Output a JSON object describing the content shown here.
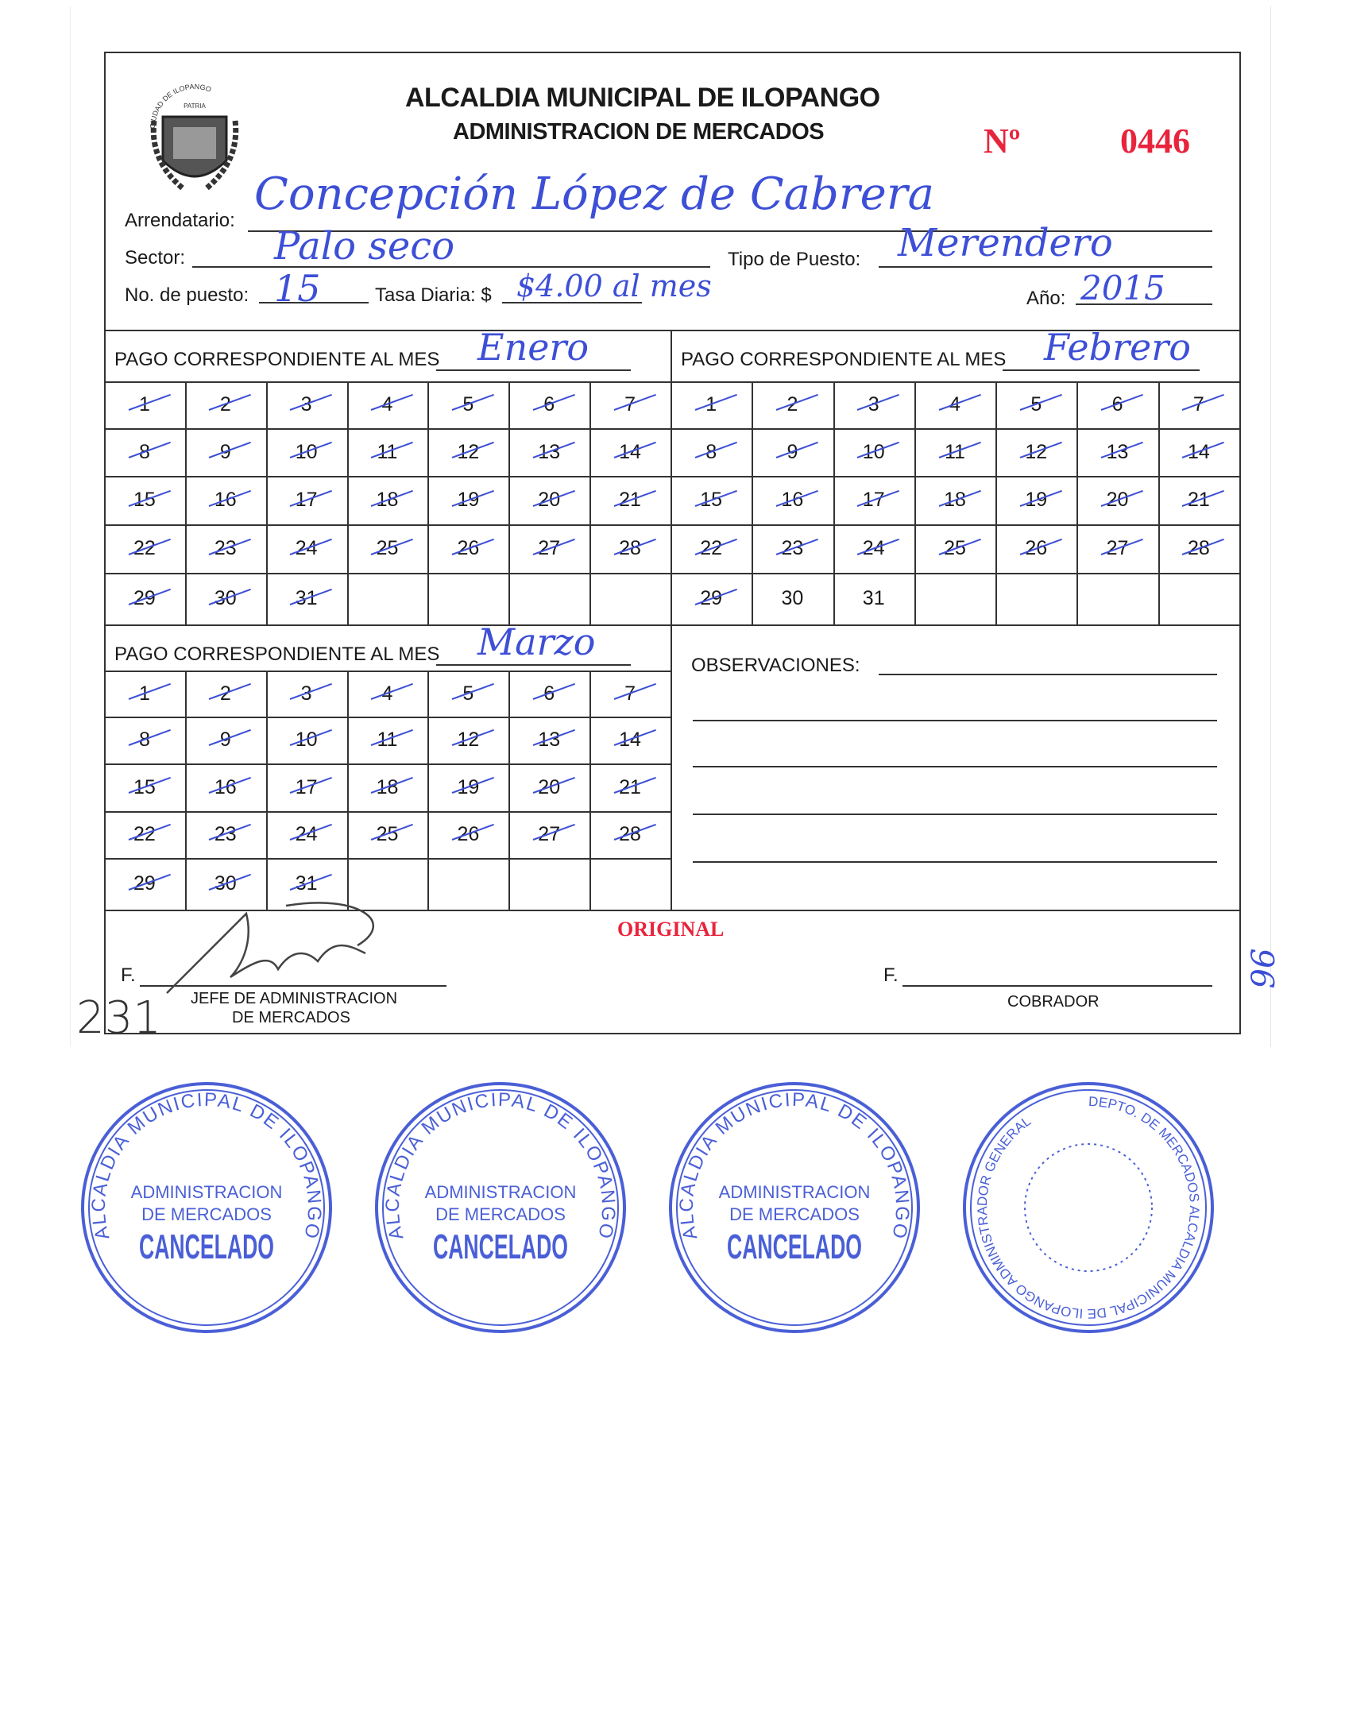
{
  "header": {
    "title": "ALCALDIA MUNICIPAL DE ILOPANGO",
    "subtitle": "ADMINISTRACION DE MERCADOS",
    "number_label": "Nº",
    "number": "0446",
    "seal_text": "CIUDAD DE ILOPANGO",
    "seal_motto": "PATRIA"
  },
  "fields": {
    "arrendatario_label": "Arrendatario:",
    "arrendatario_value": "Concepción López de Cabrera",
    "sector_label": "Sector:",
    "sector_value": "Palo seco",
    "tipo_label": "Tipo de Puesto:",
    "tipo_value": "Merendero",
    "puesto_label": "No. de puesto:",
    "puesto_value": "15",
    "tasa_label": "Tasa Diaria: $",
    "tasa_value": "$4.00 al mes",
    "anio_label": "Año:",
    "anio_value": "2015"
  },
  "months": [
    {
      "label": "PAGO CORRESPONDIENTE AL MES",
      "value": "Enero",
      "marked_through": 31
    },
    {
      "label": "PAGO CORRESPONDIENTE AL MES",
      "value": "Febrero",
      "marked_through": 29
    },
    {
      "label": "PAGO CORRESPONDIENTE AL MES",
      "value": "Marzo",
      "marked_through": 31
    }
  ],
  "observaciones_label": "OBSERVACIONES:",
  "stamps": {
    "cancelado_ring": "ALCALDIA MUNICIPAL DE ILOPANGO",
    "cancelado_line1": "ADMINISTRACION",
    "cancelado_line2": "DE MERCADOS",
    "cancelado_main": "CANCELADO",
    "admin_ring": "DEPTO. DE MERCADOS ALCALDIA MUNICIPAL DE ILOPANGO ADMINISTRADOR GENERAL"
  },
  "footer": {
    "original": "ORIGINAL",
    "f_label": "F.",
    "jefe_line1": "JEFE DE ADMINISTRACION",
    "jefe_line2": "DE MERCADOS",
    "cobrador": "COBRADOR",
    "handwritten_number": "231",
    "margin_note": "96"
  },
  "colors": {
    "ink_blue": "#3d4fd6",
    "stamp_blue": "#2b44d0",
    "red": "#e8243c"
  }
}
